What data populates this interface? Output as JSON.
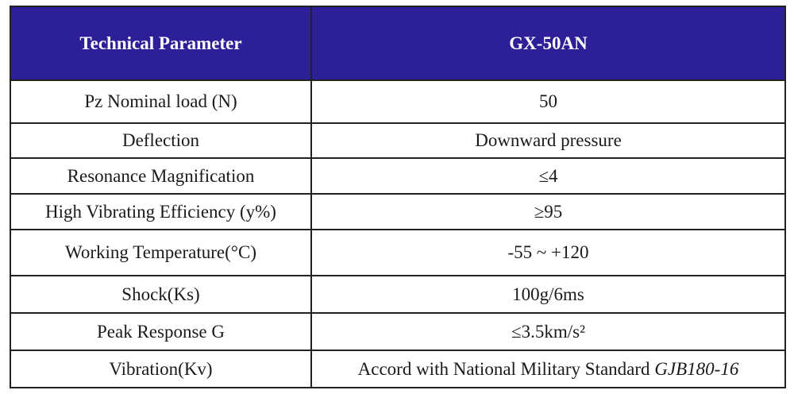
{
  "header": {
    "param_label": "Technical Parameter",
    "model_label": "GX-50AN"
  },
  "rows": [
    {
      "param": "Pz Nominal load (N)",
      "value": "50"
    },
    {
      "param": "Deflection",
      "value": "Downward pressure"
    },
    {
      "param": "Resonance Magnification",
      "value": "≤4"
    },
    {
      "param": "High Vibrating Efficiency (y%)",
      "value": "≥95"
    },
    {
      "param": "Working Temperature(°C)",
      "value": "-55 ~ +120"
    },
    {
      "param": "Shock(Ks)",
      "value": "100g/6ms"
    },
    {
      "param": "Peak Response G",
      "value": "≤3.5km/s²"
    },
    {
      "param": "Vibration(Kv)",
      "value": "Accord with National Military Standard",
      "value_italic": "GJB180-16"
    }
  ],
  "colors": {
    "header_background": "#2c1f97",
    "header_text": "#ffffff",
    "border": "#222222"
  }
}
